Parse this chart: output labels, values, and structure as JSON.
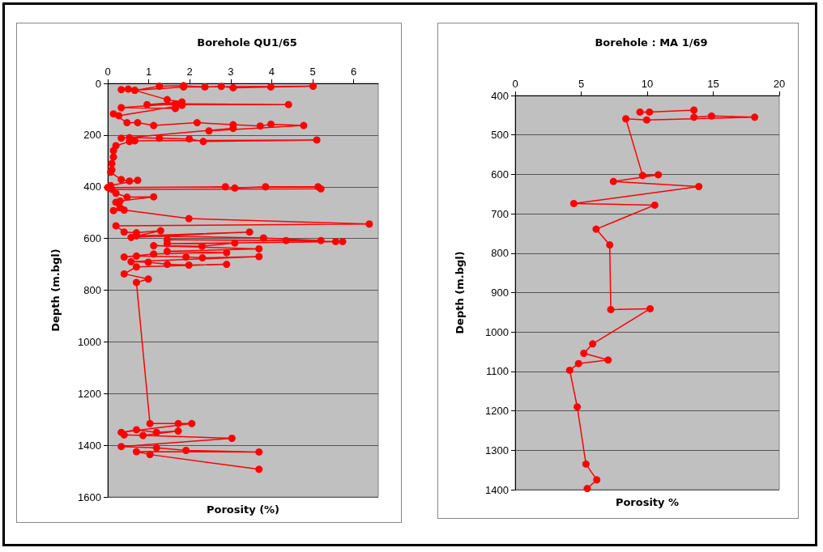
{
  "chart_data": [
    {
      "type": "line",
      "title": "Borehole QU1/65",
      "xlabel": "Porosity (%)",
      "ylabel": "Depth (m.bgl)",
      "x": [
        0.33,
        0.5,
        0.66,
        1.26,
        1.85,
        2.37,
        2.77,
        3.06,
        3.98,
        5.01,
        1.85,
        0.66,
        1.45,
        1.81,
        0.96,
        4.41,
        1.65,
        0.33,
        1.65,
        1.81,
        0.27,
        0.14,
        0.47,
        0.73,
        1.12,
        2.18,
        3.06,
        3.72,
        3.98,
        4.78,
        2.47,
        3.06,
        0.33,
        0.53,
        1.26,
        1.99,
        2.33,
        5.1,
        0.66,
        0.53,
        0.2,
        0.14,
        0.14,
        0.1,
        0.1,
        0.07,
        0.33,
        0.53,
        0.73,
        0.07,
        0.0,
        2.87,
        3.1,
        3.85,
        5.13,
        5.2,
        0.1,
        0.2,
        0.47,
        1.12,
        0.3,
        0.2,
        0.3,
        0.14,
        0.4,
        1.98,
        6.38,
        0.2,
        0.4,
        0.7,
        1.29,
        0.57,
        3.46,
        0.7,
        3.8,
        5.2,
        1.45,
        4.35,
        5.56,
        5.73,
        1.45,
        3.1,
        2.3,
        1.12,
        3.69,
        1.45,
        2.9,
        1.12,
        0.4,
        0.7,
        1.91,
        2.31,
        3.69,
        0.57,
        0.99,
        1.45,
        1.98,
        2.9,
        0.7,
        0.4,
        0.99,
        0.7,
        1.03,
        1.72,
        2.05,
        0.33,
        0.7,
        1.19,
        1.72,
        0.86,
        0.4,
        3.03,
        0.33,
        1.19,
        1.91,
        3.69,
        0.7,
        1.03,
        3.69
      ],
      "series": [
        {
          "color": "#ff0000",
          "values": [
            24,
            22,
            27,
            11,
            9,
            14,
            12,
            17,
            14,
            11,
            14,
            27,
            63,
            72,
            82,
            82,
            79,
            94,
            97,
            85,
            125,
            118,
            152,
            152,
            163,
            152,
            160,
            165,
            158,
            163,
            184,
            174,
            212,
            210,
            212,
            215,
            225,
            219,
            222,
            225,
            241,
            260,
            285,
            310,
            335,
            344,
            372,
            378,
            375,
            395,
            403,
            400,
            405,
            400,
            400,
            408,
            410,
            425,
            440,
            439,
            455,
            460,
            480,
            492,
            490,
            523,
            544,
            551,
            575,
            578,
            570,
            596,
            575,
            590,
            598,
            608,
            605,
            608,
            612,
            612,
            620,
            618,
            630,
            628,
            640,
            650,
            655,
            660,
            672,
            668,
            672,
            675,
            670,
            690,
            692,
            700,
            703,
            700,
            710,
            737,
            757,
            770,
            1316,
            1316,
            1316,
            1350,
            1340,
            1350,
            1345,
            1362,
            1360,
            1373,
            1405,
            1410,
            1420,
            1426,
            1425,
            1436,
            1493
          ]
        }
      ],
      "xlim": [
        0,
        6.6
      ],
      "xticks": [
        0,
        1,
        2,
        3,
        4,
        5,
        6
      ],
      "ylim": [
        1600,
        0
      ],
      "yticks": [
        0,
        200,
        400,
        600,
        800,
        1000,
        1200,
        1400,
        1600
      ],
      "grid": "y",
      "marker": "circle",
      "line_style": "solid"
    },
    {
      "type": "line",
      "title": "Borehole : MA 1/69",
      "xlabel": "Porosity %",
      "ylabel": "Depth (m.bgl)",
      "x": [
        9.45,
        10.17,
        13.54,
        13.54,
        14.87,
        18.14,
        9.96,
        8.38,
        9.65,
        10.84,
        7.44,
        13.91,
        4.44,
        10.57,
        6.13,
        7.16,
        7.24,
        10.22,
        5.87,
        5.2,
        7.04,
        4.8,
        4.13,
        4.7,
        5.36,
        6.18,
        5.46
      ],
      "series": [
        {
          "color": "#ff0000",
          "values": [
            442,
            442,
            437,
            455,
            452,
            455,
            462,
            459,
            603,
            601,
            618,
            631,
            674,
            678,
            739,
            779,
            943,
            941,
            1030,
            1054,
            1071,
            1080,
            1097,
            1190,
            1335,
            1375,
            1397
          ]
        }
      ],
      "xlim": [
        0,
        20
      ],
      "xticks": [
        0,
        5,
        10,
        15,
        20
      ],
      "ylim": [
        1400,
        400
      ],
      "yticks": [
        400,
        500,
        600,
        700,
        800,
        900,
        1000,
        1100,
        1200,
        1300,
        1400
      ],
      "grid": "y",
      "marker": "circle",
      "line_style": "solid"
    }
  ]
}
